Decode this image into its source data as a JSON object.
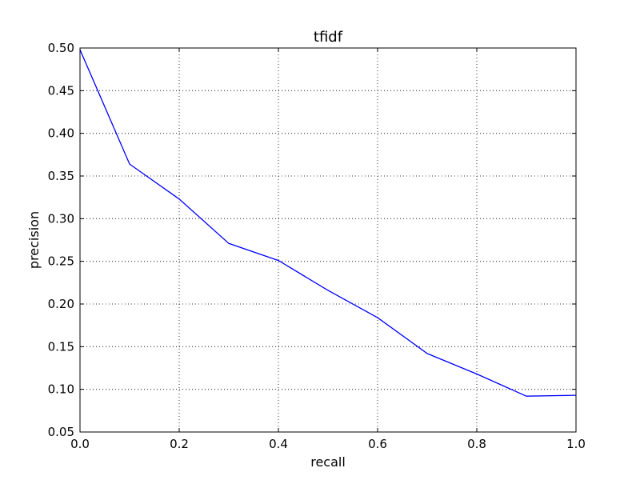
{
  "chart_data": {
    "type": "line",
    "title": "tfidf",
    "xlabel": "recall",
    "ylabel": "precision",
    "xlim": [
      0.0,
      1.0
    ],
    "ylim": [
      0.05,
      0.5
    ],
    "xticks": [
      "0.0",
      "0.2",
      "0.4",
      "0.6",
      "0.8",
      "1.0"
    ],
    "yticks": [
      "0.05",
      "0.10",
      "0.15",
      "0.20",
      "0.25",
      "0.30",
      "0.35",
      "0.40",
      "0.45",
      "0.50"
    ],
    "grid": true,
    "series": [
      {
        "color": "#0000ff",
        "x": [
          0.0,
          0.1,
          0.2,
          0.3,
          0.4,
          0.5,
          0.6,
          0.7,
          0.8,
          0.9,
          1.0
        ],
        "y": [
          0.498,
          0.364,
          0.323,
          0.271,
          0.251,
          0.216,
          0.184,
          0.142,
          0.118,
          0.092,
          0.093
        ]
      }
    ]
  }
}
